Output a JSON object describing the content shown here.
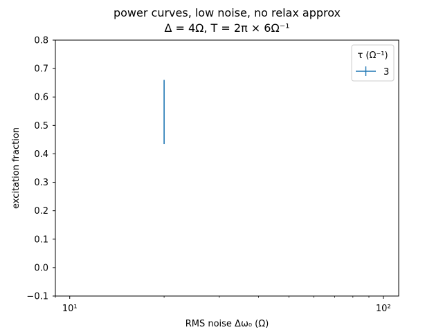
{
  "chart_data": {
    "type": "errorbar",
    "title_line1": "power curves, low noise, no relax approx",
    "title_line2": "Δ = 4Ω, T = 2π × 6Ω⁻¹",
    "xlabel": "RMS noise Δω₀ (Ω)",
    "ylabel": "excitation fraction",
    "xscale": "log",
    "xlim": [
      9,
      112
    ],
    "ylim": [
      -0.1,
      0.8
    ],
    "x_ticks": [
      10,
      100
    ],
    "x_tick_labels": [
      "10¹",
      "10²"
    ],
    "y_ticks": [
      -0.1,
      0.0,
      0.1,
      0.2,
      0.3,
      0.4,
      0.5,
      0.6,
      0.7,
      0.8
    ],
    "y_tick_labels": [
      "−0.1",
      "0.0",
      "0.1",
      "0.2",
      "0.3",
      "0.4",
      "0.5",
      "0.6",
      "0.7",
      "0.8"
    ],
    "grid": false,
    "legend": {
      "title": "τ (Ω⁻¹)",
      "placement": "top-right"
    },
    "series": [
      {
        "name": "3",
        "color": "#1f77b4",
        "points": [
          {
            "x": 20,
            "y": 0.55,
            "yerr_low": 0.435,
            "yerr_high": 0.66
          }
        ]
      }
    ]
  }
}
